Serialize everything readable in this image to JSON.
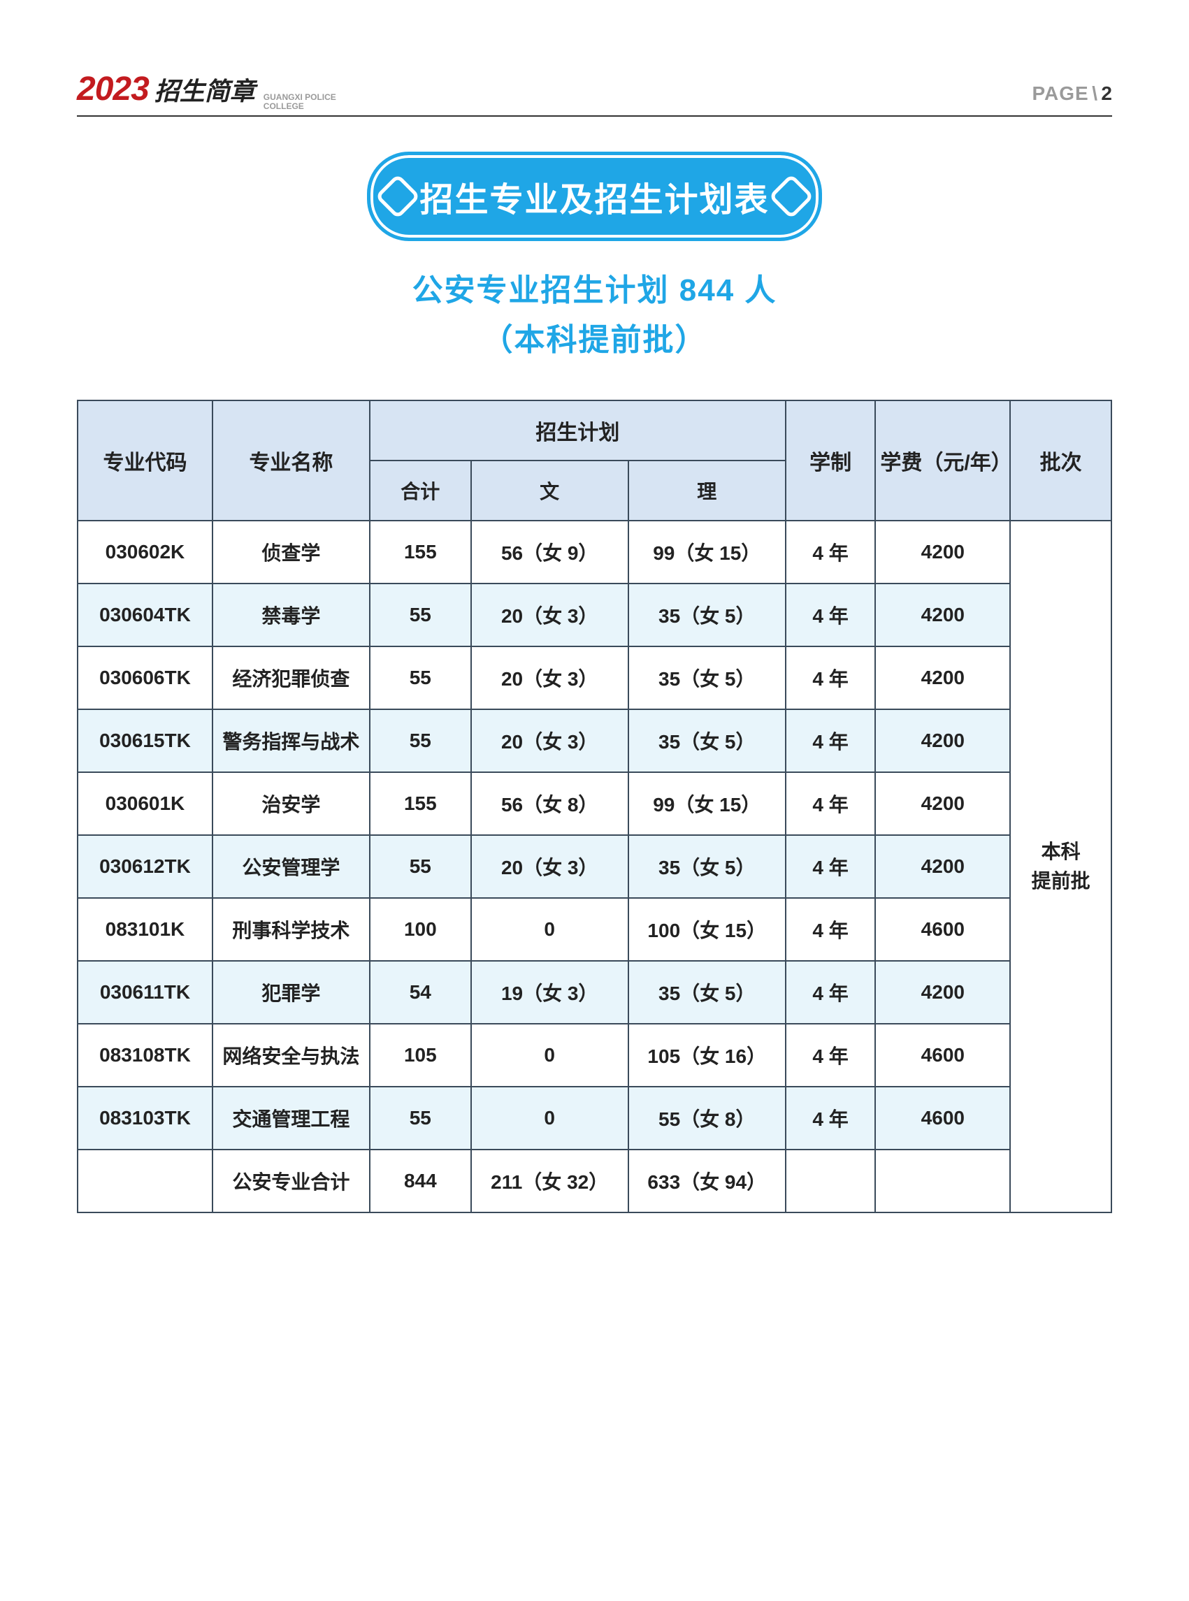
{
  "header": {
    "year": "2023",
    "brochure": "招生简章",
    "college_en": "GUANGXI POLICE",
    "college_en2": "COLLEGE",
    "page_label": "PAGE",
    "page_sep": "\\",
    "page_num": "2"
  },
  "banner": "招生专业及招生计划表",
  "subtitle_line1": "公安专业招生计划 844 人",
  "subtitle_line2": "（本科提前批）",
  "columns": {
    "code": "专业代码",
    "name": "专业名称",
    "plan": "招生计划",
    "total": "合计",
    "wen": "文",
    "li": "理",
    "duration": "学制",
    "fee": "学费（元/年）",
    "batch": "批次"
  },
  "batch_value": "本科\n提前批",
  "rows": [
    {
      "code": "030602K",
      "name": "侦查学",
      "total": "155",
      "wen": "56（女 9）",
      "li": "99（女 15）",
      "dur": "4 年",
      "fee": "4200"
    },
    {
      "code": "030604TK",
      "name": "禁毒学",
      "total": "55",
      "wen": "20（女 3）",
      "li": "35（女 5）",
      "dur": "4 年",
      "fee": "4200"
    },
    {
      "code": "030606TK",
      "name": "经济犯罪侦查",
      "total": "55",
      "wen": "20（女 3）",
      "li": "35（女 5）",
      "dur": "4 年",
      "fee": "4200"
    },
    {
      "code": "030615TK",
      "name": "警务指挥与战术",
      "total": "55",
      "wen": "20（女 3）",
      "li": "35（女 5）",
      "dur": "4 年",
      "fee": "4200"
    },
    {
      "code": "030601K",
      "name": "治安学",
      "total": "155",
      "wen": "56（女 8）",
      "li": "99（女 15）",
      "dur": "4 年",
      "fee": "4200"
    },
    {
      "code": "030612TK",
      "name": "公安管理学",
      "total": "55",
      "wen": "20（女 3）",
      "li": "35（女 5）",
      "dur": "4 年",
      "fee": "4200"
    },
    {
      "code": "083101K",
      "name": "刑事科学技术",
      "total": "100",
      "wen": "0",
      "li": "100（女 15）",
      "dur": "4 年",
      "fee": "4600"
    },
    {
      "code": "030611TK",
      "name": "犯罪学",
      "total": "54",
      "wen": "19（女 3）",
      "li": "35（女 5）",
      "dur": "4 年",
      "fee": "4200"
    },
    {
      "code": "083108TK",
      "name": "网络安全与执法",
      "total": "105",
      "wen": "0",
      "li": "105（女 16）",
      "dur": "4 年",
      "fee": "4600"
    },
    {
      "code": "083103TK",
      "name": "交通管理工程",
      "total": "55",
      "wen": "0",
      "li": "55（女 8）",
      "dur": "4 年",
      "fee": "4600"
    }
  ],
  "total_row": {
    "code": "",
    "name": "公安专业合计",
    "total": "844",
    "wen": "211（女 32）",
    "li": "633（女 94）",
    "dur": "",
    "fee": ""
  },
  "style": {
    "accent": "#1fa6e6",
    "header_bg": "#d7e4f3",
    "alt_bg": "#e8f5fb",
    "border": "#3a4a5a",
    "year_color": "#c31b1f"
  }
}
